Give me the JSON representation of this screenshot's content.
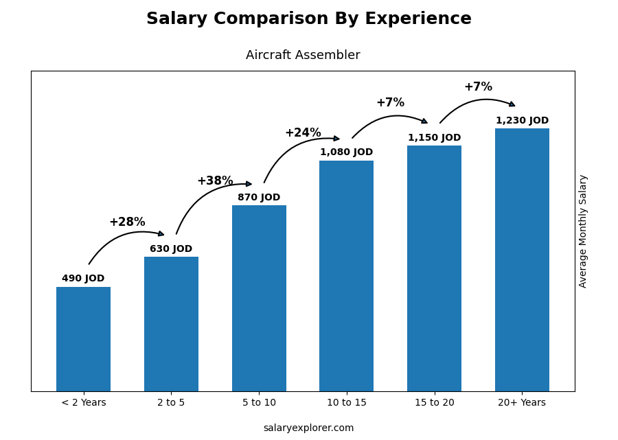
{
  "chart_data": {
    "type": "bar",
    "title": "Salary Comparison By Experience",
    "subtitle": "Aircraft Assembler",
    "ylabel": "Average Monthly Salary",
    "categories": [
      "< 2 Years",
      "2 to 5",
      "5 to 10",
      "10 to 15",
      "15 to 20",
      "20+ Years"
    ],
    "values": [
      490,
      630,
      870,
      1080,
      1150,
      1230
    ],
    "value_labels": [
      "490 JOD",
      "630 JOD",
      "870 JOD",
      "1,080 JOD",
      "1,150 JOD",
      "1,230 JOD"
    ],
    "data_labels": true,
    "annotations": [
      "+28%",
      "+38%",
      "+24%",
      "+7%",
      "+7%"
    ],
    "source": "salaryexplorer.com",
    "ylim": [
      0,
      1500
    ],
    "tick_labels": "x",
    "grid": false
  }
}
